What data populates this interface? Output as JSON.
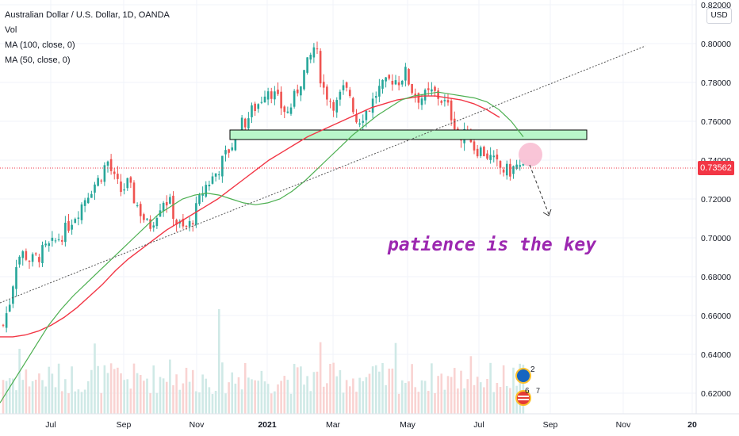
{
  "legend": {
    "title": "Australian Dollar / U.S. Dollar, 1D, OANDA",
    "vol": "Vol",
    "ma100": "MA (100, close, 0)",
    "ma50": "MA (50, close, 0)"
  },
  "currency_label": "USD",
  "last_price_label": "0.73562",
  "annotation": "patience is the key",
  "colors": {
    "up": "#26a69a",
    "down": "#ef5350",
    "ma100": "#f23645",
    "ma50": "#4caf50",
    "zone_fill": "#b9f6ca",
    "annotation": "#9c27b0",
    "price_tag": "#f23645"
  },
  "chart_data": {
    "type": "candlestick",
    "instrument": "Australian Dollar / U.S. Dollar, 1D, OANDA",
    "y_ticks": [
      "0.82000",
      "0.80000",
      "0.78000",
      "0.76000",
      "0.74000",
      "0.72000",
      "0.70000",
      "0.68000",
      "0.66000",
      "0.64000",
      "0.62000"
    ],
    "x_ticks": [
      {
        "label": "Jul",
        "bold": false
      },
      {
        "label": "Sep",
        "bold": false
      },
      {
        "label": "Nov",
        "bold": false
      },
      {
        "label": "2021",
        "bold": true
      },
      {
        "label": "Mar",
        "bold": false
      },
      {
        "label": "May",
        "bold": false
      },
      {
        "label": "Jul",
        "bold": false
      },
      {
        "label": "Sep",
        "bold": false
      },
      {
        "label": "Nov",
        "bold": false
      },
      {
        "label": "20",
        "bold": true
      }
    ],
    "ylim": [
      0.606,
      0.823
    ],
    "last_price": 0.73562,
    "close_series": [
      0.655,
      0.668,
      0.69,
      0.692,
      0.688,
      0.69,
      0.694,
      0.696,
      0.7,
      0.704,
      0.71,
      0.715,
      0.722,
      0.727,
      0.731,
      0.74,
      0.73,
      0.724,
      0.728,
      0.719,
      0.712,
      0.705,
      0.712,
      0.72,
      0.718,
      0.708,
      0.704,
      0.707,
      0.716,
      0.726,
      0.73,
      0.735,
      0.742,
      0.748,
      0.757,
      0.76,
      0.766,
      0.77,
      0.778,
      0.774,
      0.768,
      0.764,
      0.772,
      0.782,
      0.79,
      0.8,
      0.778,
      0.772,
      0.768,
      0.776,
      0.774,
      0.76,
      0.764,
      0.768,
      0.776,
      0.778,
      0.782,
      0.781,
      0.785,
      0.776,
      0.772,
      0.773,
      0.775,
      0.772,
      0.768,
      0.76,
      0.75,
      0.755,
      0.746,
      0.745,
      0.742,
      0.738,
      0.735,
      0.734,
      0.737,
      0.735
    ],
    "ma50": [
      0.615,
      0.625,
      0.635,
      0.645,
      0.655,
      0.663,
      0.67,
      0.676,
      0.682,
      0.688,
      0.694,
      0.7,
      0.706,
      0.712,
      0.716,
      0.72,
      0.722,
      0.723,
      0.722,
      0.72,
      0.718,
      0.717,
      0.718,
      0.72,
      0.724,
      0.729,
      0.735,
      0.741,
      0.747,
      0.753,
      0.758,
      0.763,
      0.767,
      0.771,
      0.773,
      0.774,
      0.775,
      0.774,
      0.773,
      0.772,
      0.77,
      0.766,
      0.76,
      0.752
    ],
    "ma100": [
      0.649,
      0.649,
      0.65,
      0.652,
      0.655,
      0.659,
      0.664,
      0.67,
      0.676,
      0.683,
      0.689,
      0.694,
      0.699,
      0.704,
      0.708,
      0.712,
      0.716,
      0.72,
      0.725,
      0.73,
      0.735,
      0.74,
      0.744,
      0.748,
      0.752,
      0.755,
      0.758,
      0.761,
      0.764,
      0.767,
      0.769,
      0.771,
      0.772,
      0.773,
      0.773,
      0.772,
      0.771,
      0.769,
      0.766,
      0.762
    ],
    "trendline": {
      "start": 0.663,
      "end": 0.8
    },
    "resistance_zone": [
      0.749,
      0.755
    ],
    "volume_axis": "unscaled"
  }
}
